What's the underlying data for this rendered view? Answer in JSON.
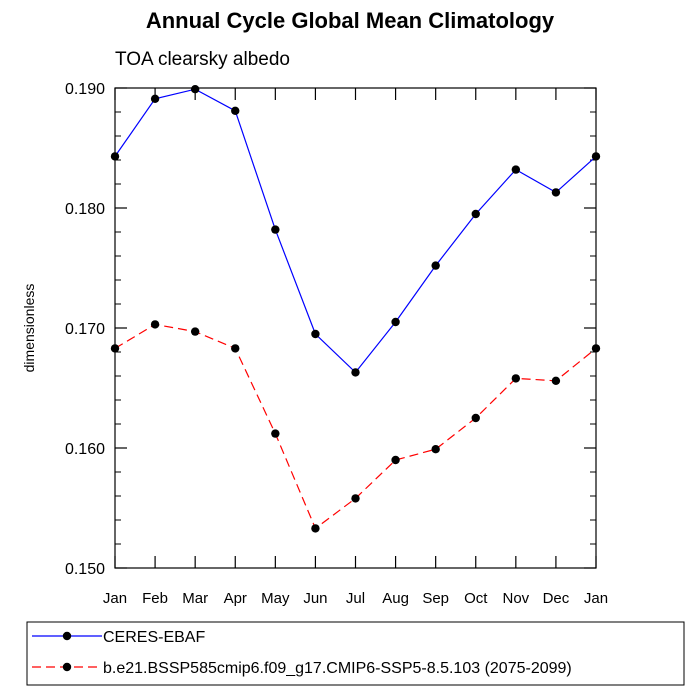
{
  "chart_data": {
    "type": "line",
    "title": "Annual Cycle Global Mean Climatology",
    "subtitle": "TOA clearsky albedo",
    "xlabel": "",
    "ylabel": "dimensionless",
    "categories": [
      "Jan",
      "Feb",
      "Mar",
      "Apr",
      "May",
      "Jun",
      "Jul",
      "Aug",
      "Sep",
      "Oct",
      "Nov",
      "Dec",
      "Jan"
    ],
    "ylim": [
      0.15,
      0.19
    ],
    "yticks": [
      0.15,
      0.16,
      0.17,
      0.18,
      0.19
    ],
    "ytick_labels": [
      "0.150",
      "0.160",
      "0.170",
      "0.180",
      "0.190"
    ],
    "grid": false,
    "legend_position": "bottom",
    "series": [
      {
        "name": "CERES-EBAF",
        "color": "#0000ff",
        "line_style": "solid",
        "marker": "filled-circle",
        "values": [
          0.1843,
          0.1891,
          0.1899,
          0.1881,
          0.1782,
          0.1695,
          0.1663,
          0.1705,
          0.1752,
          0.1795,
          0.1832,
          0.1813,
          0.1843
        ]
      },
      {
        "name": "b.e21.BSSP585cmip6.f09_g17.CMIP6-SSP5-8.5.103 (2075-2099)",
        "color": "#ff0000",
        "line_style": "dashed",
        "marker": "filled-circle",
        "values": [
          0.1683,
          0.1703,
          0.1697,
          0.1683,
          0.1612,
          0.1533,
          0.1558,
          0.159,
          0.1599,
          0.1625,
          0.1658,
          0.1656,
          0.1683
        ]
      }
    ]
  }
}
